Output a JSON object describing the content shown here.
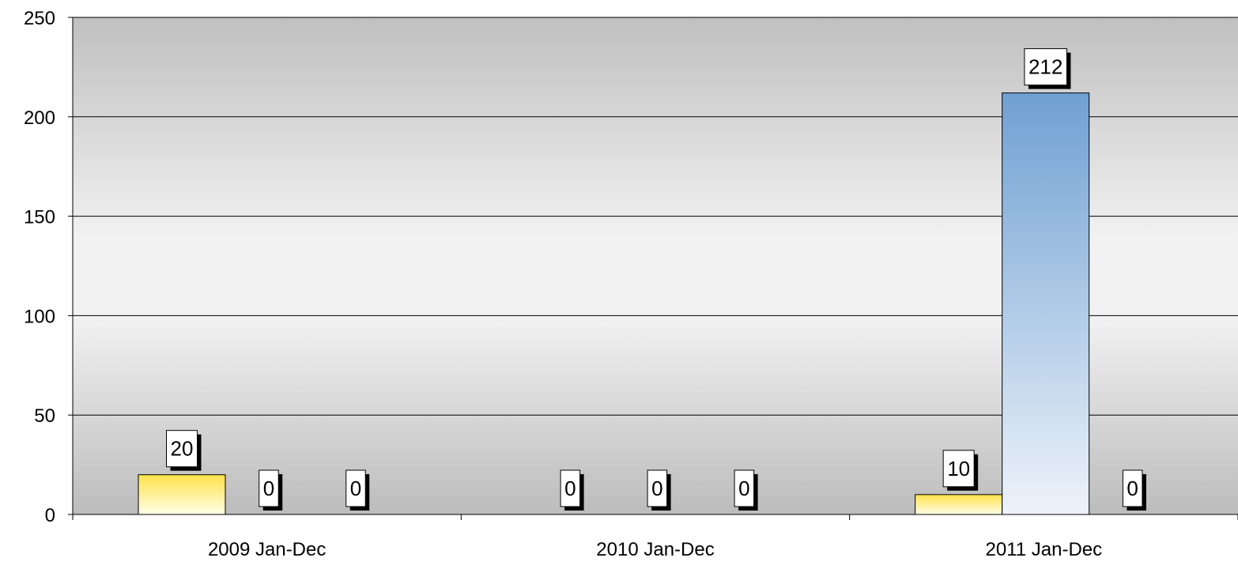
{
  "chart_data": {
    "type": "bar",
    "title": "",
    "xlabel": "",
    "ylabel": "",
    "ylim": [
      0,
      250
    ],
    "yticks": [
      0,
      50,
      100,
      150,
      200,
      250
    ],
    "grid": true,
    "legend": "none",
    "categories": [
      "2009 Jan-Dec",
      "2010 Jan-Dec",
      "2011 Jan-Dec"
    ],
    "series": [
      {
        "color_top": "#ffe24a",
        "color_bottom": "#fffde8",
        "values": [
          20,
          0,
          10
        ]
      },
      {
        "color_top": "#6fa0d2",
        "color_bottom": "#eef3fa",
        "values": [
          0,
          0,
          212
        ]
      },
      {
        "color_top": "#6fa0d2",
        "color_bottom": "#eef3fa",
        "values": [
          0,
          0,
          0
        ]
      }
    ],
    "data_labels": [
      [
        "20",
        "0",
        "10"
      ],
      [
        "0",
        "0",
        "212"
      ],
      [
        "0",
        "0",
        "0"
      ]
    ]
  }
}
